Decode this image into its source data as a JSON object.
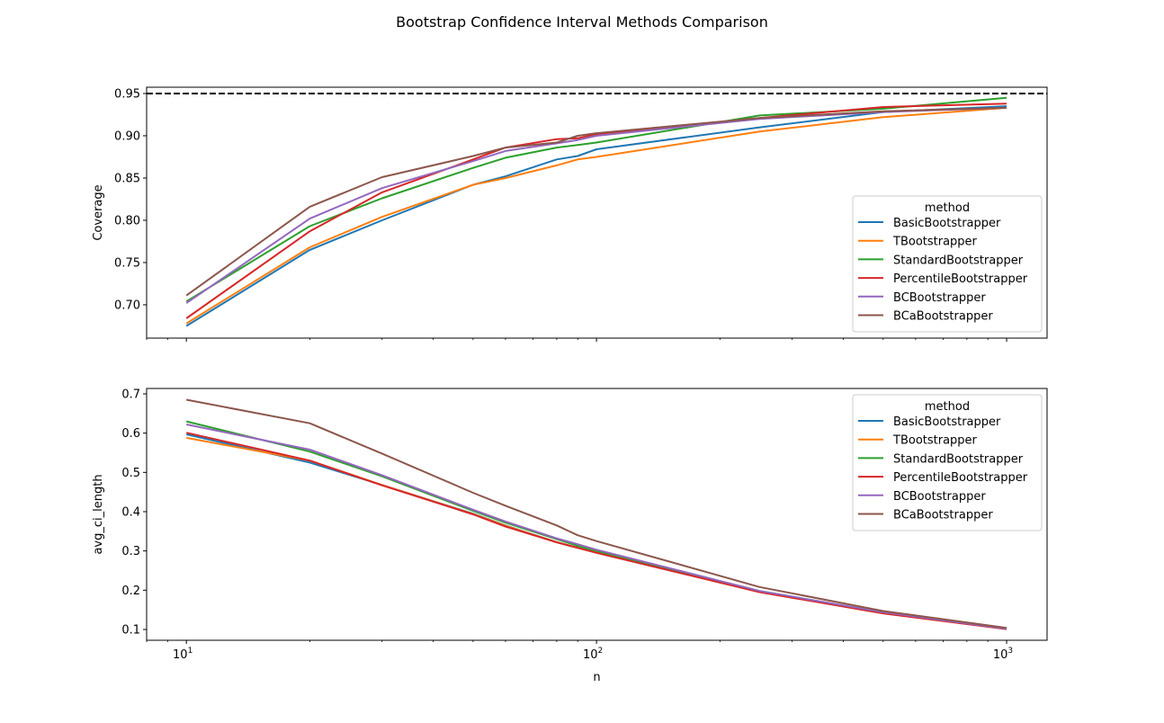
{
  "suptitle": "Bootstrap Confidence Interval Methods Comparison",
  "chart_data": [
    {
      "type": "line",
      "ylabel": "Coverage",
      "xlabel": "",
      "xscale": "log",
      "xlim": [
        8.0,
        1255
      ],
      "ylim": [
        0.6606,
        0.9574
      ],
      "yticks": [
        "0.70",
        "0.75",
        "0.80",
        "0.85",
        "0.90",
        "0.95"
      ],
      "xtick_labels_visible": false,
      "reference_line": {
        "y": 0.95,
        "style": "dashed",
        "color": "#000000"
      },
      "legend": {
        "title": "method",
        "placement": "lower-right"
      },
      "x": [
        10,
        20,
        30,
        50,
        60,
        80,
        90,
        100,
        250,
        500,
        1000
      ],
      "series": [
        {
          "name": "BasicBootstrapper",
          "color": "#1f77b4",
          "values": [
            0.675,
            0.765,
            0.8,
            0.842,
            0.852,
            0.872,
            0.876,
            0.884,
            0.91,
            0.928,
            0.935
          ]
        },
        {
          "name": "TBootstrapper",
          "color": "#ff7f0e",
          "values": [
            0.678,
            0.768,
            0.804,
            0.842,
            0.85,
            0.865,
            0.872,
            0.875,
            0.905,
            0.922,
            0.933
          ]
        },
        {
          "name": "StandardBootstrapper",
          "color": "#2ca02c",
          "values": [
            0.704,
            0.793,
            0.826,
            0.862,
            0.874,
            0.886,
            0.889,
            0.892,
            0.924,
            0.932,
            0.945
          ]
        },
        {
          "name": "PercentileBootstrapper",
          "color": "#d62728",
          "values": [
            0.684,
            0.787,
            0.833,
            0.872,
            0.886,
            0.896,
            0.897,
            0.902,
            0.921,
            0.934,
            0.938
          ]
        },
        {
          "name": "BCBootstrapper",
          "color": "#9467bd",
          "values": [
            0.702,
            0.802,
            0.838,
            0.87,
            0.882,
            0.891,
            0.895,
            0.9,
            0.92,
            0.928,
            0.933
          ]
        },
        {
          "name": "BCaBootstrapper",
          "color": "#8c564b",
          "values": [
            0.711,
            0.816,
            0.851,
            0.876,
            0.886,
            0.892,
            0.9,
            0.903,
            0.921,
            0.929,
            0.933
          ]
        }
      ]
    },
    {
      "type": "line",
      "ylabel": "avg_ci_length",
      "xlabel": "n",
      "xscale": "log",
      "xlim": [
        8.0,
        1255
      ],
      "ylim": [
        0.0725,
        0.7137
      ],
      "yticks": [
        "0.1",
        "0.2",
        "0.3",
        "0.4",
        "0.5",
        "0.6",
        "0.7"
      ],
      "xticks": [
        {
          "value": 10,
          "base": "10",
          "exp": "1"
        },
        {
          "value": 100,
          "base": "10",
          "exp": "2"
        },
        {
          "value": 1000,
          "base": "10",
          "exp": "3"
        }
      ],
      "legend": {
        "title": "method",
        "placement": "upper-right"
      },
      "x": [
        10,
        20,
        30,
        50,
        60,
        80,
        90,
        100,
        250,
        500,
        1000
      ],
      "series": [
        {
          "name": "BasicBootstrapper",
          "color": "#1f77b4",
          "values": [
            0.597,
            0.525,
            0.468,
            0.395,
            0.365,
            0.322,
            0.308,
            0.296,
            0.196,
            0.142,
            0.102
          ]
        },
        {
          "name": "TBootstrapper",
          "color": "#ff7f0e",
          "values": [
            0.588,
            0.53,
            0.468,
            0.394,
            0.364,
            0.322,
            0.308,
            0.296,
            0.196,
            0.142,
            0.102
          ]
        },
        {
          "name": "StandardBootstrapper",
          "color": "#2ca02c",
          "values": [
            0.63,
            0.553,
            0.49,
            0.402,
            0.372,
            0.33,
            0.313,
            0.3,
            0.198,
            0.143,
            0.102
          ]
        },
        {
          "name": "PercentileBootstrapper",
          "color": "#d62728",
          "values": [
            0.601,
            0.53,
            0.467,
            0.393,
            0.362,
            0.322,
            0.308,
            0.295,
            0.195,
            0.141,
            0.101
          ]
        },
        {
          "name": "BCBootstrapper",
          "color": "#9467bd",
          "values": [
            0.622,
            0.558,
            0.493,
            0.405,
            0.375,
            0.332,
            0.317,
            0.303,
            0.198,
            0.144,
            0.102
          ]
        },
        {
          "name": "BCaBootstrapper",
          "color": "#8c564b",
          "values": [
            0.685,
            0.625,
            0.548,
            0.448,
            0.415,
            0.365,
            0.34,
            0.325,
            0.208,
            0.147,
            0.104
          ]
        }
      ]
    }
  ]
}
